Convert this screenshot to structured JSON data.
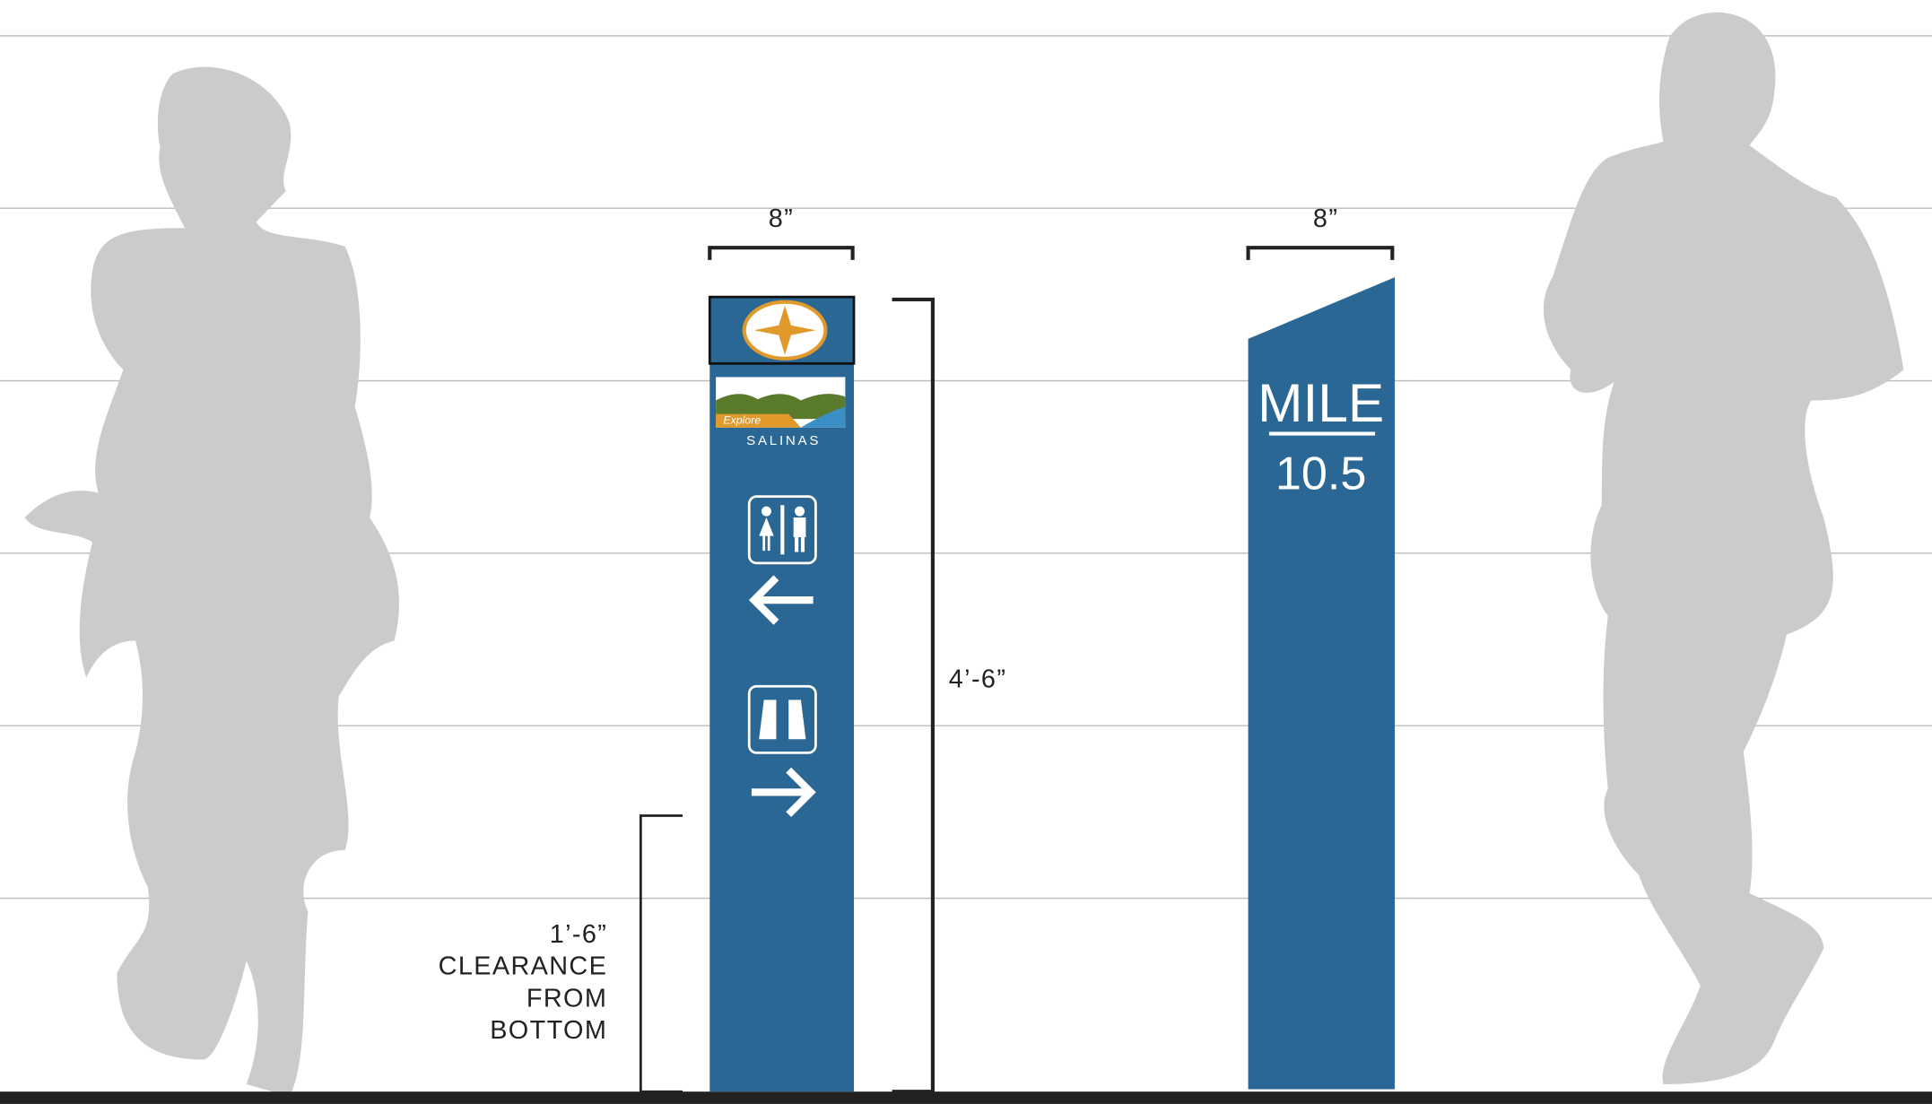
{
  "dimensions": {
    "left_width": "8”",
    "right_width": "8”",
    "post_height": "4’-6”",
    "clearance": [
      "1’-6”",
      "CLEARANCE",
      "FROM",
      "BOTTOM"
    ]
  },
  "left_sign": {
    "brand": "Explore",
    "city": "SALINAS"
  },
  "right_sign": {
    "line1": "MILE",
    "line2": "10.5"
  }
}
